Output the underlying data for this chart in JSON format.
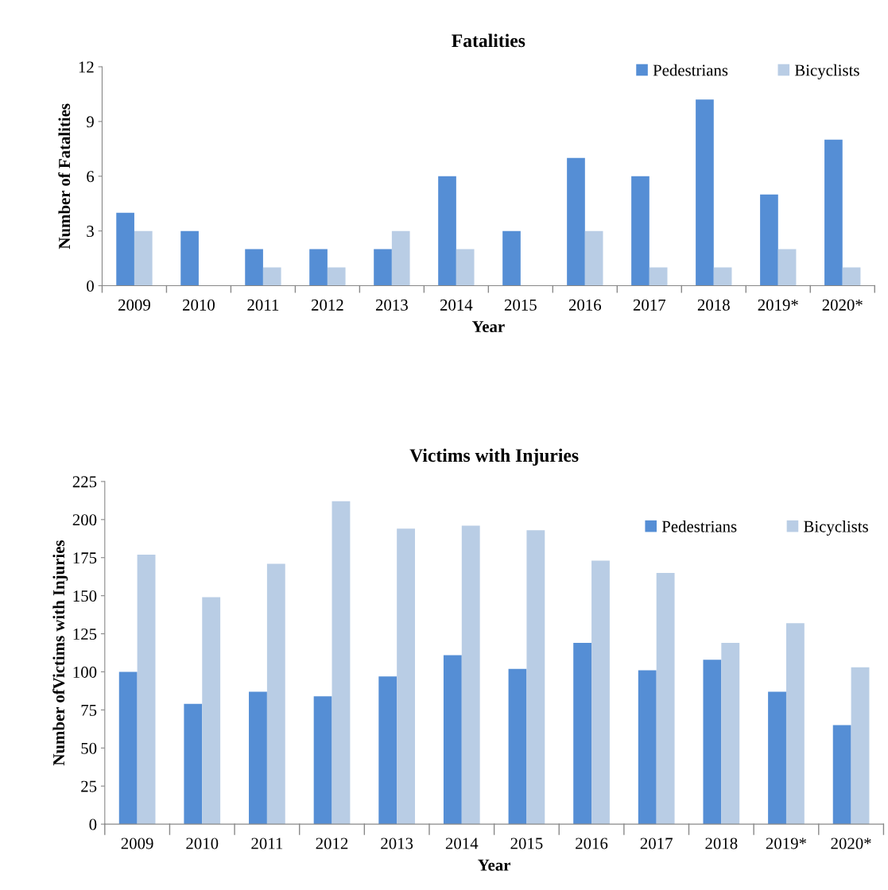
{
  "chart_data": [
    {
      "type": "bar",
      "title": "Fatalities",
      "xlabel": "Year",
      "ylabel": "Number of Fatalities",
      "categories": [
        "2009",
        "2010",
        "2011",
        "2012",
        "2013",
        "2014",
        "2015",
        "2016",
        "2017",
        "2018",
        "2019*",
        "2020*"
      ],
      "series": [
        {
          "name": "Pedestrians",
          "color": "#558ed5",
          "values": [
            4,
            3,
            2,
            2,
            2,
            6,
            3,
            7,
            6,
            10.2,
            5,
            8
          ]
        },
        {
          "name": "Bicyclists",
          "color": "#b9cde5",
          "values": [
            3,
            0,
            1,
            1,
            3,
            2,
            0,
            3,
            1,
            1,
            2,
            1
          ]
        }
      ],
      "ylim": [
        0,
        12
      ],
      "yticks": [
        0,
        3,
        6,
        9,
        12
      ],
      "grid": false,
      "legend": "top right"
    },
    {
      "type": "bar",
      "title": "Victims with Injuries",
      "xlabel": "Year",
      "ylabel": "Number ofVictims with Injuries",
      "categories": [
        "2009",
        "2010",
        "2011",
        "2012",
        "2013",
        "2014",
        "2015",
        "2016",
        "2017",
        "2018",
        "2019*",
        "2020*"
      ],
      "series": [
        {
          "name": "Pedestrians",
          "color": "#558ed5",
          "values": [
            100,
            79,
            87,
            84,
            97,
            111,
            102,
            119,
            101,
            108,
            87,
            65
          ]
        },
        {
          "name": "Bicyclists",
          "color": "#b9cde5",
          "values": [
            177,
            149,
            171,
            212,
            194,
            196,
            193,
            173,
            165,
            119,
            132,
            103
          ]
        }
      ],
      "ylim": [
        0,
        225
      ],
      "yticks": [
        0,
        25,
        50,
        75,
        100,
        125,
        150,
        175,
        200,
        225
      ],
      "grid": false,
      "legend": "top right"
    }
  ]
}
